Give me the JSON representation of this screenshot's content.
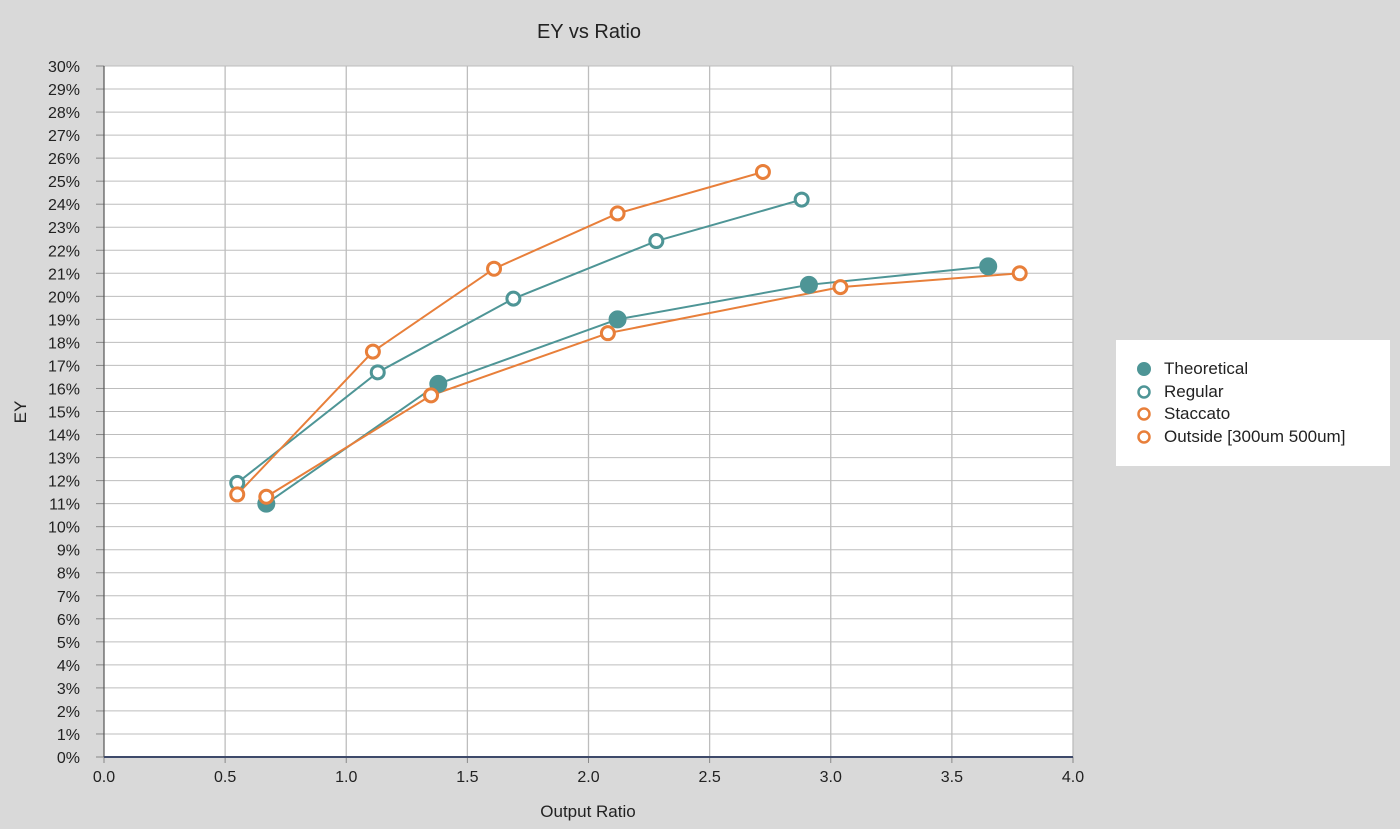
{
  "chart_data": {
    "type": "scatter",
    "title": "EY vs Ratio",
    "xlabel": "Output Ratio",
    "ylabel": "EY",
    "xlim": [
      0,
      4
    ],
    "ylim": [
      0,
      30
    ],
    "x_ticks": [
      "0.0",
      "0.5",
      "1.0",
      "1.5",
      "2.0",
      "2.5",
      "3.0",
      "3.5",
      "4.0"
    ],
    "y_ticks": [
      "0%",
      "1%",
      "2%",
      "3%",
      "4%",
      "5%",
      "6%",
      "7%",
      "8%",
      "9%",
      "10%",
      "11%",
      "12%",
      "13%",
      "14%",
      "15%",
      "16%",
      "17%",
      "18%",
      "19%",
      "20%",
      "21%",
      "22%",
      "23%",
      "24%",
      "25%",
      "26%",
      "27%",
      "28%",
      "29%",
      "30%"
    ],
    "grid": true,
    "legend_position": "right",
    "series": [
      {
        "name": "Theoretical",
        "color": "#4e9596",
        "marker": "filled",
        "points": [
          [
            0.67,
            11.0
          ],
          [
            1.38,
            16.2
          ],
          [
            2.12,
            19.0
          ],
          [
            2.91,
            20.5
          ],
          [
            3.65,
            21.3
          ]
        ]
      },
      {
        "name": "Regular",
        "color": "#4e9596",
        "marker": "open",
        "points": [
          [
            0.55,
            11.9
          ],
          [
            1.13,
            16.7
          ],
          [
            1.69,
            19.9
          ],
          [
            2.28,
            22.4
          ],
          [
            2.88,
            24.2
          ]
        ]
      },
      {
        "name": "Staccato",
        "color": "#e87f3a",
        "marker": "open",
        "points": [
          [
            0.55,
            11.4
          ],
          [
            1.11,
            17.6
          ],
          [
            1.61,
            21.2
          ],
          [
            2.12,
            23.6
          ],
          [
            2.72,
            25.4
          ]
        ]
      },
      {
        "name": "Outside [300um 500um]",
        "color": "#e87f3a",
        "marker": "open",
        "points": [
          [
            0.67,
            11.3
          ],
          [
            1.35,
            15.7
          ],
          [
            2.08,
            18.4
          ],
          [
            3.04,
            20.4
          ],
          [
            3.78,
            21.0
          ]
        ]
      }
    ]
  }
}
